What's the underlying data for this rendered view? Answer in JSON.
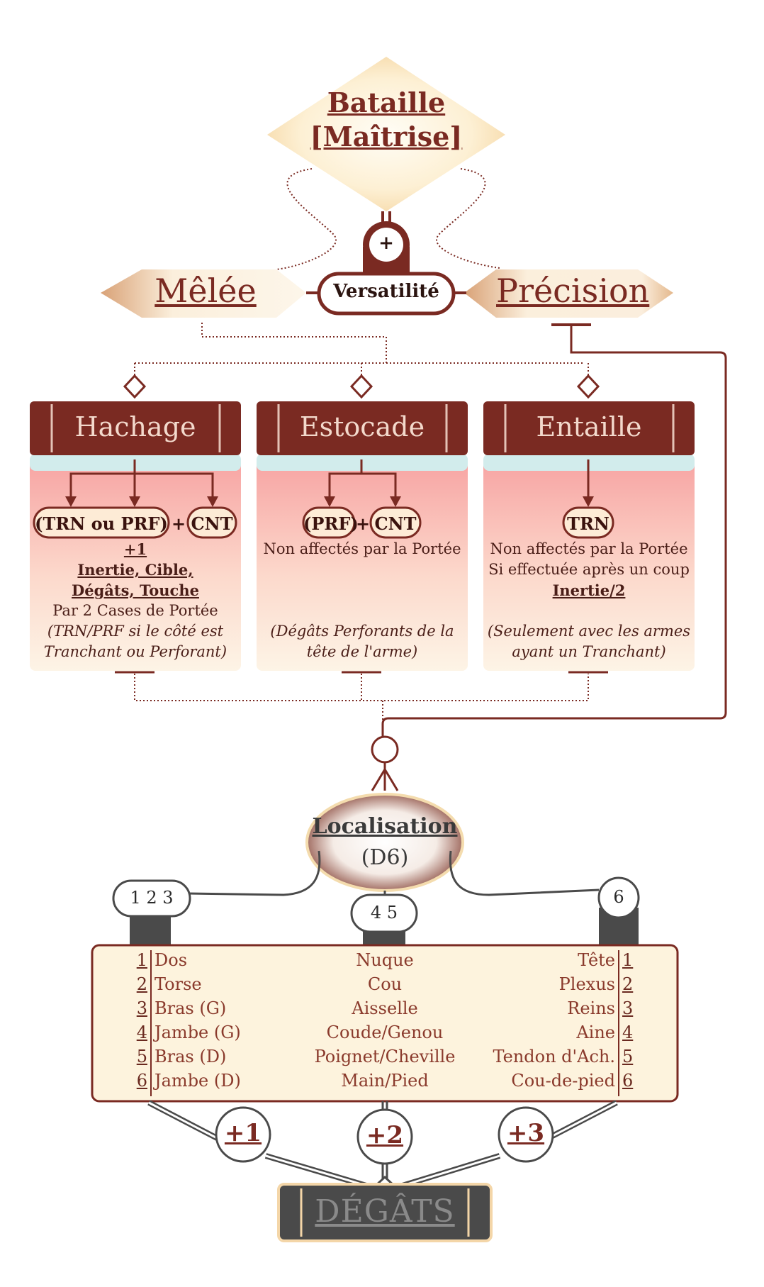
{
  "top": {
    "line1": "Bataille",
    "line2": "[Maîtrise]",
    "plus": "+"
  },
  "branches": {
    "left": "Mêlée",
    "center": "Versatilité",
    "right": "Précision"
  },
  "cards": [
    {
      "title": "Hachage",
      "pill_a": "(TRN ou PRF)",
      "plus": "+",
      "pill_b": "CNT",
      "lines": [
        "+1",
        "Inertie, Cible,",
        "Dégâts, Touche",
        "Par 2 Cases de Portée",
        "(TRN/PRF si le côté est",
        "Tranchant ou Perforant)"
      ]
    },
    {
      "title": "Estocade",
      "pill_a": "(PRF)",
      "plus": "+",
      "pill_b": "CNT",
      "lines": [
        "Non affectés par la Portée",
        "",
        "",
        "",
        "(Dégâts Perforants de la",
        "tête de l'arme)"
      ]
    },
    {
      "title": "Entaille",
      "pill_a": "TRN",
      "lines": [
        "Non affectés par la Portée",
        "Si effectuée après un coup",
        "Inertie/2",
        "",
        "(Seulement avec les armes",
        "ayant un Tranchant)"
      ]
    }
  ],
  "localisation": {
    "title": "Localisation",
    "dice": "(D6)"
  },
  "dice_nodes": {
    "left": "1 2 3",
    "center": "4 5",
    "right": "6"
  },
  "table": {
    "numbers": [
      "1",
      "2",
      "3",
      "4",
      "5",
      "6"
    ],
    "left": [
      "Dos",
      "Torse",
      "Bras (G)",
      "Jambe (G)",
      "Bras (D)",
      "Jambe (D)"
    ],
    "center": [
      "Nuque",
      "Cou",
      "Aisselle",
      "Coude/Genou",
      "Poignet/Cheville",
      "Main/Pied"
    ],
    "right": [
      "Tête",
      "Plexus",
      "Reins",
      "Aine",
      "Tendon d'Ach.",
      "Cou-de-pied"
    ]
  },
  "bonuses": [
    "+1",
    "+2",
    "+3"
  ],
  "result": "DÉGÂTS",
  "colors": {
    "maroon": "#7a2a22",
    "cream": "#fdf3d8",
    "card_pink": "#f7a9a6",
    "gray": "#4a4a4a"
  }
}
